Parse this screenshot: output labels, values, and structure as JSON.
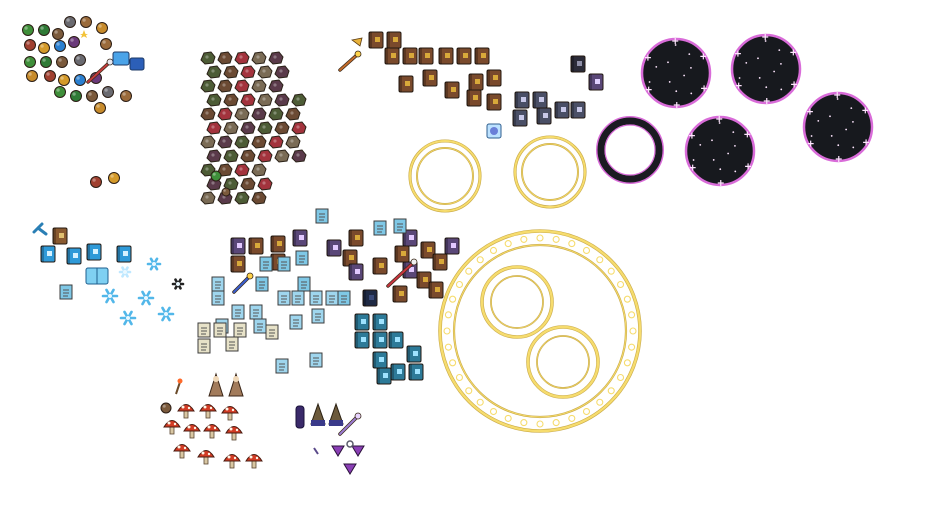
{
  "sheet": {
    "kind": "sprite-atlas",
    "background": "#ffffff",
    "palette": {
      "gold": "#f6dc6e",
      "gold_dark": "#b48f1f",
      "void": "#17191e",
      "void_rim": "#d96cd9",
      "void_star": "#ffe6ff",
      "book_brown": "#7a4a2c",
      "book_gold": "#d8a93a",
      "tome_purple": "#5a4778",
      "tome_slate": "#4a4f66",
      "scroll_cream": "#e7e2c8",
      "scroll_blue": "#7fc8e6",
      "ice": "#52b7e9",
      "ice_dark": "#2a7fb5",
      "ore_green": "#4d5c36",
      "ore_brown": "#6b4a33",
      "ore_red": "#a3333d",
      "mushroom_red": "#d23c25",
      "cloak_tan": "#a27b5b",
      "wand_violet": "#9b7bd2"
    },
    "clusters": [
      {
        "name": "consumables-cluster",
        "icon": "potion-icon"
      },
      {
        "name": "ore-cluster",
        "icon": "ore-chunk-icon"
      },
      {
        "name": "spellbook-cluster",
        "icon": "spellbook-icon"
      },
      {
        "name": "ice-cluster",
        "icon": "snowflake-icon"
      },
      {
        "name": "scroll-cluster",
        "icon": "scroll-icon"
      },
      {
        "name": "mushroom-cluster",
        "icon": "mushroom-icon"
      },
      {
        "name": "arcane-cluster",
        "icon": "wand-icon"
      },
      {
        "name": "magic-circle-cluster",
        "icon": "rune-circle-icon"
      },
      {
        "name": "portal-cluster",
        "icon": "void-portal-icon"
      }
    ]
  }
}
